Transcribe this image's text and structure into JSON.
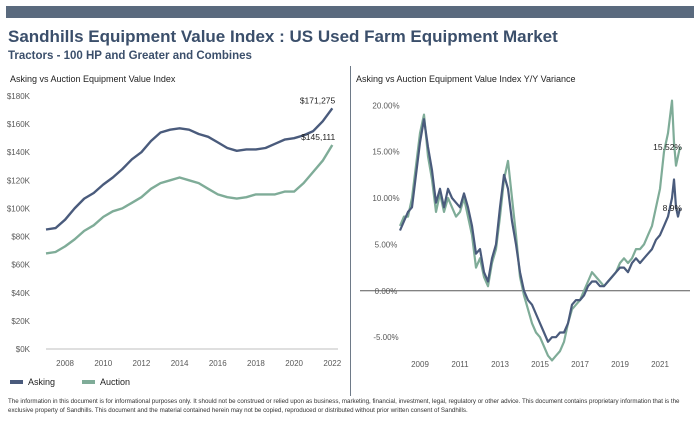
{
  "header": {
    "title": "Sandhills Equipment Value Index : US Used Farm Equipment Market",
    "subtitle": "Tractors - 100 HP and Greater and Combines"
  },
  "colors": {
    "asking": "#4a5b7c",
    "auction": "#7fac98",
    "header_bar": "#5a6a7e",
    "title": "#3b4f6b"
  },
  "legend": {
    "asking": "Asking",
    "auction": "Auction"
  },
  "disclaimer": "The information in this document is for informational purposes only.  It should not be construed or relied upon as business, marketing, financial, investment, legal, regulatory or other advice. This document contains proprietary information that is the exclusive property of Sandhills. This document and the material contained herein may not be copied, reproduced or distributed without prior written consent of Sandhills.",
  "chart_data": [
    {
      "type": "line",
      "title": "Asking vs Auction Equipment Value Index",
      "xlabel": "",
      "ylabel": "",
      "xlim": [
        2007,
        2022.3
      ],
      "ylim": [
        0,
        180000
      ],
      "x_ticks": [
        2008,
        2010,
        2012,
        2014,
        2016,
        2018,
        2020,
        2022
      ],
      "y_ticks": [
        0,
        20000,
        40000,
        60000,
        80000,
        100000,
        120000,
        140000,
        160000,
        180000
      ],
      "y_tick_labels": [
        "$0K",
        "$20K",
        "$40K",
        "$60K",
        "$80K",
        "$100K",
        "$120K",
        "$140K",
        "$160K",
        "$180K"
      ],
      "grid": false,
      "series": [
        {
          "name": "Asking",
          "x": [
            2007.0,
            2007.5,
            2008.0,
            2008.5,
            2009.0,
            2009.5,
            2010.0,
            2010.5,
            2011.0,
            2011.5,
            2012.0,
            2012.5,
            2013.0,
            2013.5,
            2014.0,
            2014.5,
            2015.0,
            2015.5,
            2016.0,
            2016.5,
            2017.0,
            2017.5,
            2018.0,
            2018.5,
            2019.0,
            2019.5,
            2020.0,
            2020.5,
            2021.0,
            2021.5,
            2022.0
          ],
          "values": [
            85000,
            86000,
            92000,
            100000,
            107000,
            111000,
            117000,
            122000,
            128000,
            135000,
            140000,
            148000,
            154000,
            156000,
            157000,
            156000,
            153000,
            151000,
            147000,
            143000,
            141000,
            142000,
            142000,
            143000,
            146000,
            149000,
            150000,
            152000,
            155000,
            162000,
            171275
          ],
          "end_label": "$171,275"
        },
        {
          "name": "Auction",
          "x": [
            2007.0,
            2007.5,
            2008.0,
            2008.5,
            2009.0,
            2009.5,
            2010.0,
            2010.5,
            2011.0,
            2011.5,
            2012.0,
            2012.5,
            2013.0,
            2013.5,
            2014.0,
            2014.5,
            2015.0,
            2015.5,
            2016.0,
            2016.5,
            2017.0,
            2017.5,
            2018.0,
            2018.5,
            2019.0,
            2019.5,
            2020.0,
            2020.5,
            2021.0,
            2021.5,
            2022.0
          ],
          "values": [
            68000,
            69000,
            73000,
            78000,
            84000,
            88000,
            94000,
            98000,
            100000,
            104000,
            108000,
            114000,
            118000,
            120000,
            122000,
            120000,
            118000,
            114000,
            110000,
            108000,
            107000,
            108000,
            110000,
            110000,
            110000,
            112000,
            112000,
            118000,
            126000,
            134000,
            145111
          ],
          "end_label": "$145,111"
        }
      ]
    },
    {
      "type": "line",
      "title": "Asking vs Auction Equipment Value Index Y/Y Variance",
      "xlabel": "",
      "ylabel": "",
      "xlim": [
        2008.0,
        2022.0
      ],
      "ylim": [
        -8,
        21
      ],
      "x_ticks": [
        2009,
        2011,
        2013,
        2015,
        2017,
        2019,
        2021
      ],
      "y_ticks": [
        -5,
        0,
        5,
        10,
        15,
        20
      ],
      "y_tick_labels": [
        "-5.00%",
        "0.00%",
        "5.00%",
        "10.00%",
        "15.00%",
        "20.00%"
      ],
      "grid": false,
      "series": [
        {
          "name": "Asking",
          "x": [
            2008.0,
            2008.2,
            2008.4,
            2008.6,
            2008.8,
            2009.0,
            2009.2,
            2009.4,
            2009.6,
            2009.8,
            2010.0,
            2010.2,
            2010.4,
            2010.6,
            2010.8,
            2011.0,
            2011.2,
            2011.4,
            2011.6,
            2011.8,
            2012.0,
            2012.2,
            2012.4,
            2012.6,
            2012.8,
            2013.0,
            2013.2,
            2013.4,
            2013.6,
            2013.8,
            2014.0,
            2014.2,
            2014.4,
            2014.6,
            2014.8,
            2015.0,
            2015.2,
            2015.4,
            2015.6,
            2015.8,
            2016.0,
            2016.2,
            2016.4,
            2016.6,
            2016.8,
            2017.0,
            2017.2,
            2017.4,
            2017.6,
            2017.8,
            2018.0,
            2018.2,
            2018.4,
            2018.6,
            2018.8,
            2019.0,
            2019.2,
            2019.4,
            2019.6,
            2019.8,
            2020.0,
            2020.2,
            2020.4,
            2020.6,
            2020.8,
            2021.0,
            2021.2,
            2021.4,
            2021.6,
            2021.7,
            2021.8,
            2021.9,
            2022.0
          ],
          "values": [
            6.5,
            7.5,
            8.5,
            9.0,
            12.5,
            16.0,
            18.5,
            15.5,
            13.0,
            9.5,
            11.0,
            9.0,
            11.0,
            10.0,
            9.5,
            9.0,
            10.5,
            9.0,
            7.0,
            4.0,
            4.5,
            2.0,
            1.0,
            3.5,
            5.0,
            9.0,
            12.5,
            11.0,
            7.5,
            5.0,
            2.0,
            0.0,
            -1.0,
            -1.5,
            -2.5,
            -3.5,
            -4.5,
            -5.5,
            -5.0,
            -5.0,
            -4.5,
            -4.5,
            -3.5,
            -1.5,
            -1.0,
            -1.0,
            -0.5,
            0.5,
            1.0,
            1.0,
            0.5,
            0.5,
            1.0,
            1.5,
            2.0,
            2.5,
            2.5,
            2.0,
            3.0,
            3.5,
            3.0,
            3.5,
            4.0,
            4.5,
            5.5,
            6.0,
            7.0,
            8.0,
            10.0,
            12.0,
            9.0,
            8.0,
            8.9
          ],
          "end_label": "8.9%"
        },
        {
          "name": "Auction",
          "x": [
            2008.0,
            2008.2,
            2008.4,
            2008.6,
            2008.8,
            2009.0,
            2009.2,
            2009.4,
            2009.6,
            2009.8,
            2010.0,
            2010.2,
            2010.4,
            2010.6,
            2010.8,
            2011.0,
            2011.2,
            2011.4,
            2011.6,
            2011.8,
            2012.0,
            2012.2,
            2012.4,
            2012.6,
            2012.8,
            2013.0,
            2013.2,
            2013.4,
            2013.6,
            2013.8,
            2014.0,
            2014.2,
            2014.4,
            2014.6,
            2014.8,
            2015.0,
            2015.2,
            2015.4,
            2015.6,
            2015.8,
            2016.0,
            2016.2,
            2016.4,
            2016.6,
            2016.8,
            2017.0,
            2017.2,
            2017.4,
            2017.6,
            2017.8,
            2018.0,
            2018.2,
            2018.4,
            2018.6,
            2018.8,
            2019.0,
            2019.2,
            2019.4,
            2019.6,
            2019.8,
            2020.0,
            2020.2,
            2020.4,
            2020.6,
            2020.8,
            2021.0,
            2021.2,
            2021.4,
            2021.6,
            2021.7,
            2021.8,
            2021.9,
            2022.0
          ],
          "values": [
            7.0,
            8.0,
            8.0,
            10.0,
            13.5,
            17.0,
            19.0,
            14.5,
            12.0,
            8.5,
            10.5,
            8.5,
            10.0,
            9.0,
            8.0,
            8.5,
            10.0,
            8.0,
            6.0,
            2.5,
            3.5,
            1.5,
            0.5,
            3.0,
            4.5,
            8.0,
            12.0,
            14.0,
            10.0,
            6.0,
            1.5,
            -0.5,
            -2.0,
            -3.5,
            -4.5,
            -5.0,
            -6.0,
            -7.0,
            -7.5,
            -7.0,
            -6.5,
            -5.5,
            -3.5,
            -2.0,
            -1.5,
            -1.0,
            0.0,
            1.0,
            2.0,
            1.5,
            1.0,
            0.5,
            1.0,
            1.5,
            2.0,
            3.0,
            3.5,
            3.0,
            3.5,
            4.5,
            4.5,
            5.0,
            6.0,
            7.0,
            9.0,
            11.0,
            15.0,
            17.0,
            20.5,
            16.0,
            13.5,
            14.5,
            15.52
          ],
          "end_label": "15.52%"
        }
      ]
    }
  ]
}
